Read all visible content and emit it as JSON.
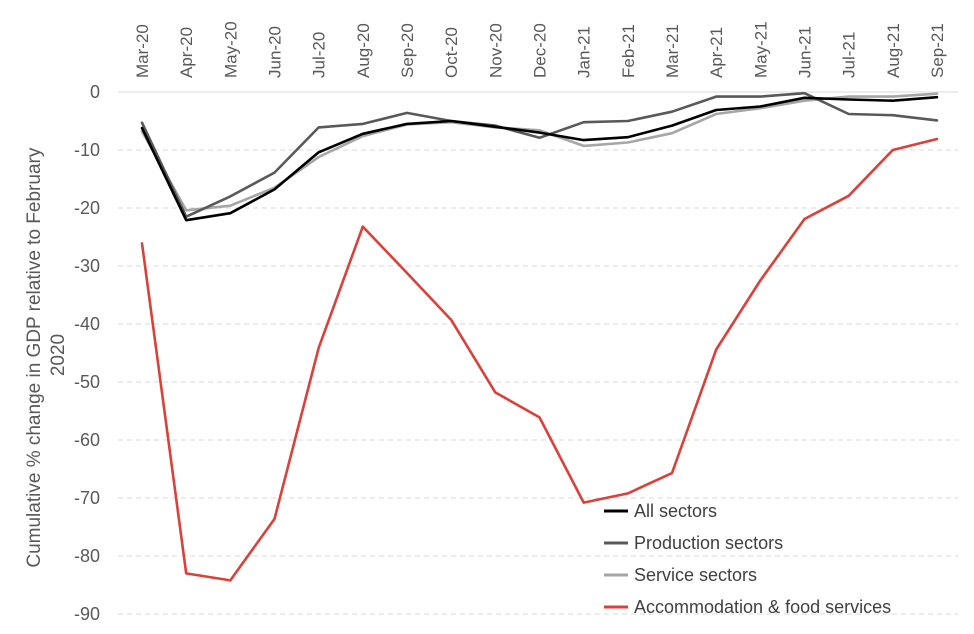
{
  "chart_data": {
    "type": "line",
    "title": "",
    "ylabel": "Cumulative  % change in GDP relative to February 2020",
    "ylabel_lines": [
      "Cumulative  % change in GDP relative to February",
      "2020"
    ],
    "xlabel": "",
    "x": [
      "Mar-20",
      "Apr-20",
      "May-20",
      "Jun-20",
      "Jul-20",
      "Aug-20",
      "Sep-20",
      "Oct-20",
      "Nov-20",
      "Dec-20",
      "Jan-21",
      "Feb-21",
      "Mar-21",
      "Apr-21",
      "May-21",
      "Jun-21",
      "Jul-21",
      "Aug-21",
      "Sep-21"
    ],
    "ylim": [
      -90,
      0
    ],
    "yticks": [
      0,
      -10,
      -20,
      -30,
      -40,
      -50,
      -60,
      -70,
      -80,
      -90
    ],
    "x_axis_position": "top",
    "grid": "horizontal-dashed",
    "legend_position": "bottom-right",
    "series": [
      {
        "name": "All sectors",
        "color": "#000000",
        "values": [
          -6.2,
          -22.1,
          -20.9,
          -16.8,
          -10.4,
          -7.2,
          -5.5,
          -5.0,
          -6.0,
          -7.0,
          -8.3,
          -7.8,
          -5.8,
          -3.1,
          -2.5,
          -1.0,
          -1.3,
          -1.5,
          -0.9
        ]
      },
      {
        "name": "Production sectors",
        "color": "#595959",
        "values": [
          -5.3,
          -21.5,
          -18.0,
          -13.9,
          -6.1,
          -5.5,
          -3.6,
          -5.0,
          -5.8,
          -7.9,
          -5.2,
          -5.0,
          -3.4,
          -0.8,
          -0.8,
          -0.2,
          -3.8,
          -4.0,
          -4.9
        ]
      },
      {
        "name": "Service sectors",
        "color": "#a6a6a6",
        "values": [
          -6.8,
          -20.4,
          -19.6,
          -16.5,
          -11.2,
          -7.6,
          -5.6,
          -5.2,
          -6.1,
          -6.6,
          -9.3,
          -8.7,
          -7.1,
          -3.8,
          -2.8,
          -1.5,
          -0.8,
          -0.8,
          -0.3
        ]
      },
      {
        "name": "Accommodation & food services",
        "color": "#d9413a",
        "values": [
          -26.1,
          -83.0,
          -84.2,
          -73.6,
          -44.1,
          -23.2,
          -31.2,
          -39.3,
          -51.8,
          -56.1,
          -70.8,
          -69.2,
          -65.7,
          -44.4,
          -32.5,
          -21.9,
          -17.9,
          -10.0,
          -8.1
        ]
      }
    ]
  }
}
